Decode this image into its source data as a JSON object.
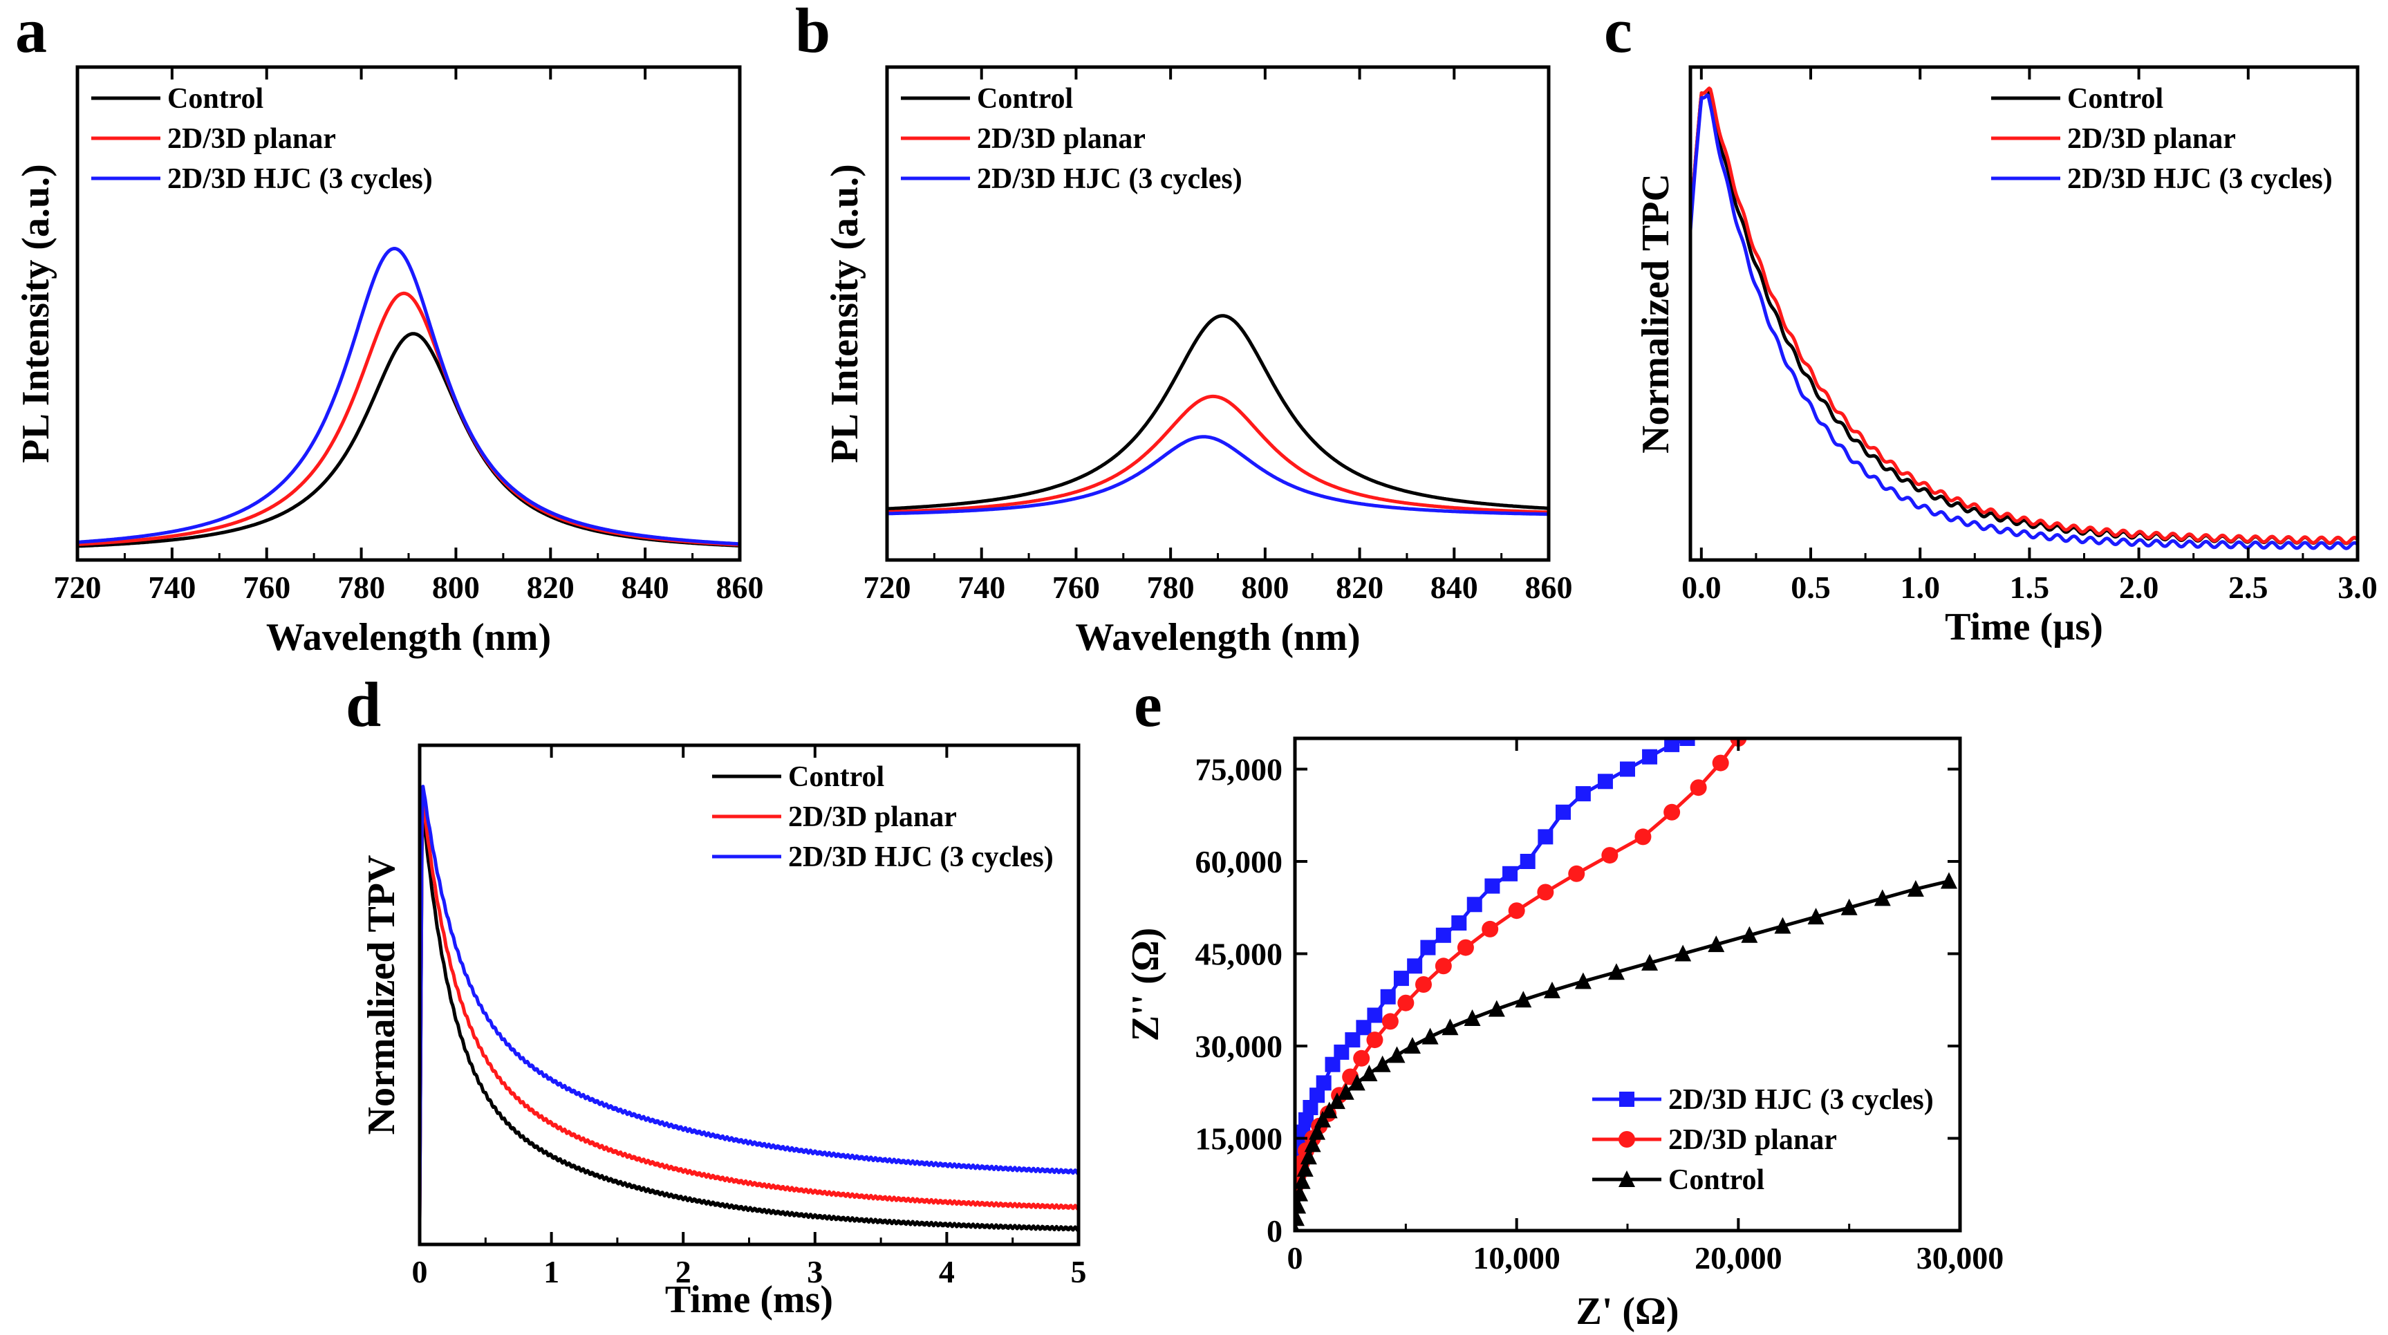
{
  "colors": {
    "Control": "#000000",
    "planar": "#ff1a1a",
    "HJC": "#1a1aff"
  },
  "chart_data": [
    {
      "panel": "a",
      "type": "line",
      "xlabel": "Wavelength (nm)",
      "ylabel": "PL Intensity (a.u.)",
      "xlim": [
        720,
        860
      ],
      "ylim": [
        0,
        1.1
      ],
      "xticks": [
        720,
        740,
        760,
        780,
        800,
        820,
        840,
        860
      ],
      "xtick_labels": [
        "720",
        "740",
        "760",
        "780",
        "800",
        "820",
        "840",
        "860"
      ],
      "yticks": [],
      "ytick_labels": [],
      "legend": {
        "position": "top-left",
        "entries": [
          "Control",
          "2D/3D planar",
          "2D/3D HJC (3 cycles)"
        ]
      },
      "series": [
        {
          "name": "Control",
          "color": "#000000",
          "kind": "peak",
          "params": {
            "center": 791,
            "gamma": 13,
            "amp": 0.49,
            "base": 0.0
          }
        },
        {
          "name": "2D/3D planar",
          "color": "#ff1a1a",
          "kind": "peak",
          "params": {
            "center": 789,
            "gamma": 13,
            "amp": 0.58,
            "base": 0.0
          }
        },
        {
          "name": "2D/3D HJC (3 cycles)",
          "color": "#1a1aff",
          "kind": "peak",
          "params": {
            "center": 787,
            "gamma": 13,
            "amp": 0.68,
            "base": 0.0
          }
        }
      ]
    },
    {
      "panel": "b",
      "type": "line",
      "xlabel": "Wavelength (nm)",
      "ylabel": "PL Intensity (a.u.)",
      "xlim": [
        720,
        860
      ],
      "ylim": [
        0,
        1.1
      ],
      "xticks": [
        720,
        740,
        760,
        780,
        800,
        820,
        840,
        860
      ],
      "xtick_labels": [
        "720",
        "740",
        "760",
        "780",
        "800",
        "820",
        "840",
        "860"
      ],
      "yticks": [],
      "ytick_labels": [],
      "legend": {
        "position": "top-left",
        "entries": [
          "Control",
          "2D/3D planar",
          "2D/3D HJC (3 cycles)"
        ]
      },
      "series": [
        {
          "name": "Control",
          "color": "#000000",
          "kind": "peak",
          "params": {
            "center": 791,
            "gamma": 15,
            "amp": 0.45,
            "base": 0.08
          }
        },
        {
          "name": "2D/3D planar",
          "color": "#ff1a1a",
          "kind": "peak",
          "params": {
            "center": 789,
            "gamma": 15,
            "amp": 0.27,
            "base": 0.08
          }
        },
        {
          "name": "2D/3D HJC (3 cycles)",
          "color": "#1a1aff",
          "kind": "peak",
          "params": {
            "center": 787,
            "gamma": 15,
            "amp": 0.18,
            "base": 0.08
          }
        }
      ]
    },
    {
      "panel": "c",
      "type": "line",
      "xlabel": "Time (µs)",
      "ylabel": "Normalized TPC",
      "xlim": [
        -0.05,
        3.0
      ],
      "ylim": [
        0,
        1.05
      ],
      "xticks": [
        0.0,
        0.5,
        1.0,
        1.5,
        2.0,
        2.5,
        3.0
      ],
      "xtick_labels": [
        "0.0",
        "0.5",
        "1.0",
        "1.5",
        "2.0",
        "2.5",
        "3.0"
      ],
      "yticks": [],
      "ytick_labels": [],
      "legend": {
        "position": "top-right",
        "entries": [
          "Control",
          "2D/3D planar",
          "2D/3D HJC (3 cycles)"
        ]
      },
      "series": [
        {
          "name": "Control",
          "color": "#000000",
          "kind": "exp",
          "params": {
            "t0": 0.03,
            "tau": 0.45,
            "amp": 0.96,
            "base": 0.04
          }
        },
        {
          "name": "2D/3D planar",
          "color": "#ff1a1a",
          "kind": "exp",
          "params": {
            "t0": 0.04,
            "tau": 0.47,
            "amp": 0.96,
            "base": 0.04
          }
        },
        {
          "name": "2D/3D HJC (3 cycles)",
          "color": "#1a1aff",
          "kind": "exp",
          "params": {
            "t0": 0.03,
            "tau": 0.4,
            "amp": 0.96,
            "base": 0.03
          }
        }
      ]
    },
    {
      "panel": "d",
      "type": "line",
      "xlabel": "Time (ms)",
      "ylabel": "Normalized TPV",
      "xlim": [
        0,
        5
      ],
      "ylim": [
        0,
        1.0
      ],
      "xticks": [
        0,
        1,
        2,
        3,
        4,
        5
      ],
      "xtick_labels": [
        "0",
        "1",
        "2",
        "3",
        "4",
        "5"
      ],
      "yticks": [],
      "ytick_labels": [],
      "legend": {
        "position": "top-right",
        "entries": [
          "Control",
          "2D/3D planar",
          "2D/3D HJC (3 cycles)"
        ]
      },
      "series": [
        {
          "name": "Control",
          "color": "#000000",
          "kind": "tpv",
          "params": {
            "a1": 0.55,
            "tau1": 0.22,
            "a2": 0.31,
            "tau2": 1.3,
            "base": 0.025
          }
        },
        {
          "name": "2D/3D planar",
          "color": "#ff1a1a",
          "kind": "tpv",
          "params": {
            "a1": 0.5,
            "tau1": 0.24,
            "a2": 0.34,
            "tau2": 1.4,
            "base": 0.065
          }
        },
        {
          "name": "2D/3D HJC (3 cycles)",
          "color": "#1a1aff",
          "kind": "tpv",
          "params": {
            "a1": 0.45,
            "tau1": 0.26,
            "a2": 0.35,
            "tau2": 1.6,
            "base": 0.13
          }
        }
      ]
    },
    {
      "panel": "e",
      "type": "scatter",
      "xlabel": "Z' (Ω)",
      "ylabel": "Z'' (Ω)",
      "xlim": [
        0,
        30000
      ],
      "ylim": [
        0,
        80000
      ],
      "xticks": [
        0,
        10000,
        20000,
        30000
      ],
      "xtick_labels": [
        "0",
        "10,000",
        "20,000",
        "30,000"
      ],
      "yticks": [
        0,
        15000,
        30000,
        45000,
        60000,
        75000
      ],
      "ytick_labels": [
        "0",
        "15,000",
        "30,000",
        "45,000",
        "60,000",
        "75,000"
      ],
      "legend": {
        "position": "bottom-right",
        "entries": [
          "2D/3D HJC (3 cycles)",
          "2D/3D planar",
          "Control"
        ]
      },
      "series": [
        {
          "name": "2D/3D HJC (3 cycles)",
          "color": "#1a1aff",
          "marker": "square",
          "x": [
            0,
            100,
            200,
            350,
            500,
            700,
            1000,
            1300,
            1700,
            2100,
            2600,
            3100,
            3600,
            4200,
            4800,
            5400,
            6000,
            6700,
            7400,
            8100,
            8900,
            9700,
            10500,
            11300,
            12100,
            13000,
            14000,
            15000,
            16000,
            17000,
            17700
          ],
          "y": [
            10000,
            12000,
            14000,
            16000,
            18000,
            20000,
            22000,
            24000,
            27000,
            29000,
            31000,
            33000,
            35000,
            38000,
            41000,
            43000,
            46000,
            48000,
            50000,
            53000,
            56000,
            58000,
            60000,
            64000,
            68000,
            71000,
            73000,
            75000,
            77000,
            79000,
            80000
          ]
        },
        {
          "name": "2D/3D planar",
          "color": "#ff1a1a",
          "marker": "circle",
          "x": [
            0,
            150,
            300,
            500,
            800,
            1100,
            1500,
            2000,
            2500,
            3000,
            3600,
            4300,
            5000,
            5800,
            6700,
            7700,
            8800,
            10000,
            11300,
            12700,
            14200,
            15700,
            17000,
            18200,
            19200,
            20000
          ],
          "y": [
            7000,
            9000,
            11000,
            13000,
            15000,
            17000,
            19000,
            22000,
            25000,
            28000,
            31000,
            34000,
            37000,
            40000,
            43000,
            46000,
            49000,
            52000,
            55000,
            58000,
            61000,
            64000,
            68000,
            72000,
            76000,
            80000
          ]
        },
        {
          "name": "Control",
          "color": "#000000",
          "marker": "triangle",
          "x": [
            0,
            60,
            130,
            220,
            330,
            460,
            620,
            800,
            1000,
            1250,
            1550,
            1900,
            2300,
            2800,
            3350,
            3950,
            4600,
            5300,
            6100,
            7000,
            8000,
            9100,
            10300,
            11600,
            13000,
            14500,
            16000,
            17500,
            19000,
            20500,
            22000,
            23500,
            25000,
            26500,
            28000,
            29500
          ],
          "y": [
            0,
            2000,
            4000,
            6000,
            8000,
            10000,
            12000,
            14000,
            16000,
            18000,
            19500,
            21000,
            22500,
            24000,
            25500,
            27000,
            28500,
            30000,
            31500,
            33000,
            34500,
            36000,
            37500,
            39000,
            40500,
            42000,
            43500,
            45000,
            46500,
            48000,
            49500,
            51000,
            52500,
            54000,
            55500,
            56800
          ]
        }
      ]
    }
  ]
}
